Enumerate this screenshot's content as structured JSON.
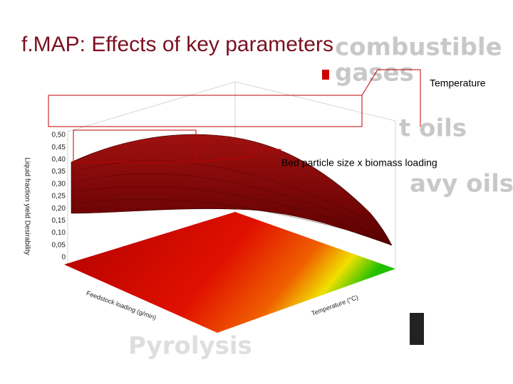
{
  "slide": {
    "title": "f.MAP: Effects of key parameters",
    "background_words": [
      "combustible",
      "gases",
      "t oils",
      "avy oils",
      "Pyrolysis"
    ],
    "callouts": [
      "Temperature",
      "Bed particle size x biomass loading"
    ],
    "plot": {
      "z_axis_label": "Liquid fraction yield Desirability",
      "z_ticks": [
        "0,50",
        "0,45",
        "0,40",
        "0,35",
        "0,30",
        "0,25",
        "0,20",
        "0,15",
        "0,10",
        "0,05",
        "0"
      ],
      "x_axis_label": "Temperature (°C)",
      "y_axis_label": "Feedstock loading (g/min)"
    }
  }
}
